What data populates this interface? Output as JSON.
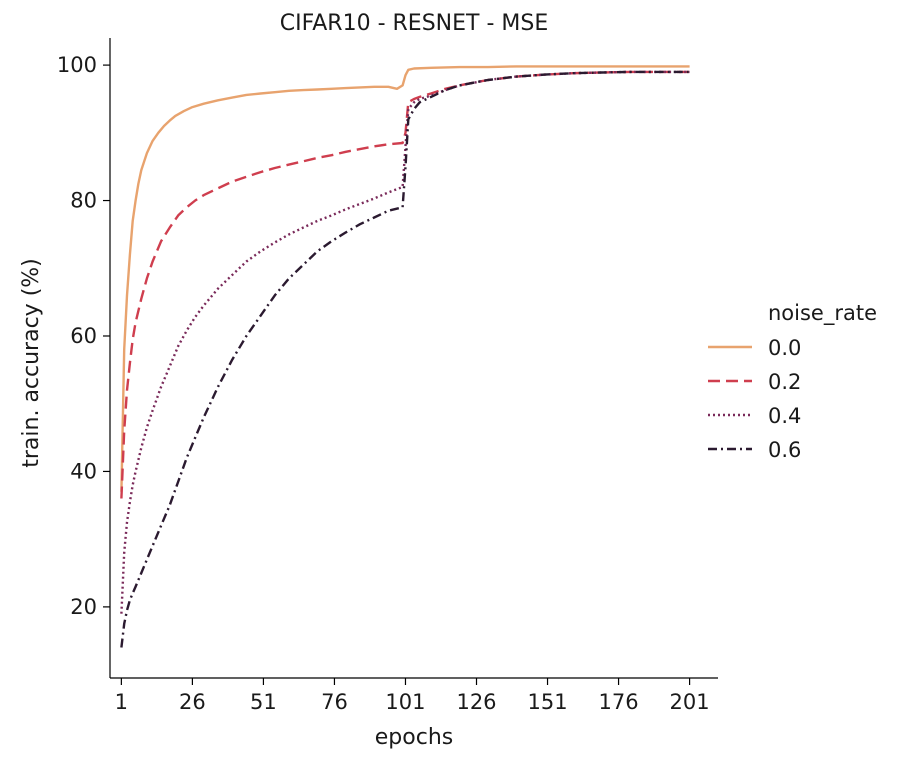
{
  "chart_data": {
    "type": "line",
    "title": "CIFAR10 - RESNET - MSE",
    "xlabel": "epochs",
    "ylabel": "train. accuracy (%)",
    "xlim": [
      -3,
      211
    ],
    "ylim": [
      9.5,
      104
    ],
    "xticks": [
      1,
      26,
      51,
      76,
      101,
      126,
      151,
      176,
      201
    ],
    "yticks": [
      20,
      40,
      60,
      80,
      100
    ],
    "grid": false,
    "legend": {
      "title": "noise_rate",
      "placement": "right"
    },
    "series": [
      {
        "name": "0.0",
        "color": "#e8a36e",
        "dash": "solid",
        "x": [
          1,
          2,
          3,
          4,
          5,
          6,
          7,
          8,
          10,
          12,
          14,
          16,
          18,
          20,
          23,
          26,
          30,
          35,
          40,
          45,
          50,
          55,
          60,
          65,
          70,
          75,
          80,
          85,
          90,
          95,
          98,
          100,
          101,
          102,
          104,
          110,
          120,
          130,
          140,
          150,
          160,
          170,
          180,
          190,
          201
        ],
        "y": [
          37,
          58,
          66,
          72,
          77,
          80,
          82.5,
          84.5,
          87,
          88.8,
          90,
          91,
          91.8,
          92.5,
          93.2,
          93.8,
          94.3,
          94.8,
          95.2,
          95.6,
          95.8,
          96,
          96.2,
          96.3,
          96.4,
          96.5,
          96.6,
          96.7,
          96.8,
          96.8,
          96.5,
          97,
          98.5,
          99.3,
          99.5,
          99.6,
          99.7,
          99.7,
          99.8,
          99.8,
          99.8,
          99.8,
          99.8,
          99.8,
          99.8
        ]
      },
      {
        "name": "0.2",
        "color": "#cf3e4e",
        "dash": "dashed",
        "x": [
          1,
          2,
          3,
          4,
          5,
          6,
          8,
          10,
          12,
          15,
          18,
          21,
          24,
          27,
          30,
          35,
          40,
          45,
          50,
          55,
          60,
          65,
          70,
          75,
          80,
          85,
          90,
          95,
          100,
          101,
          102,
          104,
          106,
          110,
          115,
          120,
          130,
          140,
          150,
          160,
          170,
          180,
          190,
          201
        ],
        "y": [
          36,
          46,
          52,
          56,
          59.5,
          62,
          65.5,
          68.5,
          71,
          74,
          76,
          77.8,
          79,
          80,
          80.8,
          81.8,
          82.8,
          83.5,
          84.2,
          84.8,
          85.3,
          85.8,
          86.3,
          86.7,
          87.2,
          87.6,
          88,
          88.3,
          88.5,
          90,
          94.5,
          95,
          95.3,
          95.8,
          96.5,
          97,
          97.8,
          98.3,
          98.6,
          98.8,
          98.9,
          99,
          99,
          99
        ]
      },
      {
        "name": "0.4",
        "color": "#7a2a5a",
        "dash": "dotted",
        "x": [
          1,
          2,
          3,
          4,
          5,
          6,
          8,
          10,
          12,
          15,
          18,
          21,
          24,
          27,
          30,
          35,
          40,
          45,
          50,
          55,
          60,
          65,
          70,
          75,
          80,
          85,
          90,
          95,
          100,
          101,
          102,
          104,
          106,
          110,
          115,
          120,
          130,
          140,
          150,
          160,
          170,
          180,
          190,
          201
        ],
        "y": [
          19,
          28,
          32.5,
          35.5,
          38,
          40,
          43.5,
          46.5,
          49,
          52.5,
          55.5,
          58.5,
          60.8,
          62.8,
          64.5,
          67,
          69,
          71,
          72.5,
          73.8,
          75,
          76,
          77,
          77.8,
          78.7,
          79.5,
          80.3,
          81.2,
          82,
          88,
          93.5,
          94.5,
          95,
          95.5,
          96.3,
          97,
          97.8,
          98.3,
          98.6,
          98.8,
          98.9,
          99,
          99,
          99
        ]
      },
      {
        "name": "0.6",
        "color": "#2b1a30",
        "dash": "dashdot",
        "x": [
          1,
          2,
          3,
          4,
          5,
          6,
          8,
          10,
          12,
          15,
          18,
          21,
          24,
          27,
          30,
          35,
          40,
          45,
          50,
          55,
          60,
          65,
          70,
          75,
          80,
          85,
          90,
          95,
          100,
          101,
          102,
          104,
          106,
          110,
          115,
          120,
          130,
          140,
          150,
          160,
          170,
          180,
          190,
          201
        ],
        "y": [
          14,
          17.5,
          19.5,
          21,
          22,
          23,
          25,
          27,
          29,
          32,
          35,
          38.5,
          42,
          45,
          48,
          52.5,
          56.5,
          60,
          63,
          66,
          68.5,
          70.5,
          72.5,
          74,
          75.3,
          76.5,
          77.5,
          78.5,
          79,
          85,
          92,
          93.5,
          94.5,
          95.3,
          96.3,
          97,
          97.8,
          98.3,
          98.6,
          98.8,
          98.9,
          99,
          99,
          99
        ]
      }
    ]
  }
}
